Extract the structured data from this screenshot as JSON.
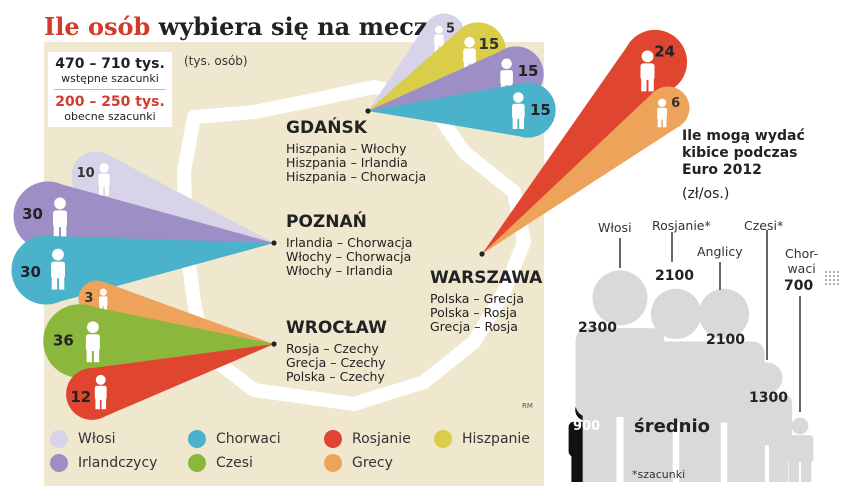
{
  "title": {
    "highlight": "Ile osób",
    "rest": "wybiera się na mecze"
  },
  "summary": {
    "range1": "470 – 710 tys.",
    "range1_label": "wstępne szacunki",
    "range2": "200 – 250 tys.",
    "range2_label": "obecne szacunki"
  },
  "unit_label": "(tys. osób)",
  "footer_code": "RM",
  "colors": {
    "Włosi": "#d7d3e8",
    "Irlandczycy": "#9d8ec6",
    "Chorwaci": "#4ab3cb",
    "Czesi": "#8bb73d",
    "Rosjanie": "#e0452f",
    "Grecy": "#eea35a",
    "Hiszpanie": "#d9cd4a"
  },
  "legend": [
    {
      "label": "Włosi",
      "color": "#d7d3e8"
    },
    {
      "label": "Irlandczycy",
      "color": "#9d8ec6"
    },
    {
      "label": "Chorwaci",
      "color": "#4ab3cb"
    },
    {
      "label": "Czesi",
      "color": "#8bb73d"
    },
    {
      "label": "Rosjanie",
      "color": "#e0452f"
    },
    {
      "label": "Grecy",
      "color": "#eea35a"
    },
    {
      "label": "Hiszpanie",
      "color": "#d9cd4a"
    }
  ],
  "chart_data": [
    {
      "type": "bar",
      "categories": [
        "GDAŃSK",
        "POZNAŃ",
        "WROCŁAW",
        "WARSZAWA"
      ],
      "ylabel": "(tys. osób)",
      "cities": [
        {
          "name": "GDAŃSK",
          "matches": [
            "Hiszpania – Włochy",
            "Hiszpania – Irlandia",
            "Hiszpania – Chorwacja"
          ],
          "fans": [
            {
              "team": "Włosi",
              "value": 5
            },
            {
              "team": "Hiszpanie",
              "value": 15
            },
            {
              "team": "Irlandczycy",
              "value": 15
            },
            {
              "team": "Chorwaci",
              "value": 15
            }
          ]
        },
        {
          "name": "POZNAŃ",
          "matches": [
            "Irlandia – Chorwacja",
            "Włochy – Chorwacja",
            "Włochy – Irlandia"
          ],
          "fans": [
            {
              "team": "Włosi",
              "value": 10
            },
            {
              "team": "Irlandczycy",
              "value": 30
            },
            {
              "team": "Chorwaci",
              "value": 30
            }
          ]
        },
        {
          "name": "WROCŁAW",
          "matches": [
            "Rosja – Czechy",
            "Grecja – Czechy",
            "Polska – Czechy"
          ],
          "fans": [
            {
              "team": "Grecy",
              "value": 3
            },
            {
              "team": "Czesi",
              "value": 36
            },
            {
              "team": "Rosjanie",
              "value": 12
            }
          ]
        },
        {
          "name": "WARSZAWA",
          "matches": [
            "Polska – Grecja",
            "Polska – Rosja",
            "Grecja – Rosja"
          ],
          "fans": [
            {
              "team": "Rosjanie",
              "value": 24
            },
            {
              "team": "Grecy",
              "value": 6
            }
          ]
        }
      ]
    },
    {
      "type": "bar",
      "title": "Ile mogą wydać kibice podczas Euro 2012",
      "ylabel": "(zł/os.)",
      "categories": [
        "Włosi",
        "Rosjanie*",
        "Anglicy",
        "Czesi*",
        "Chor-waci",
        "średnio"
      ],
      "values": [
        2300,
        2100,
        2100,
        1300,
        700,
        900
      ],
      "footnote": "*szacunki"
    }
  ],
  "spending": {
    "title": "Ile mogą wydać kibice podczas Euro 2012",
    "unit": "(zł/os.)",
    "avg_label": "średnio",
    "footnote": "*szacunki",
    "people": [
      {
        "label": "Włosi",
        "value": "2300"
      },
      {
        "label": "Rosjanie*",
        "value": "2100"
      },
      {
        "label": "Anglicy",
        "value": "2100"
      },
      {
        "label": "Czesi*",
        "value": "1300"
      },
      {
        "label_line1": "Chor-",
        "label_line2": "waci",
        "value": "700"
      },
      {
        "value": "900"
      }
    ]
  }
}
